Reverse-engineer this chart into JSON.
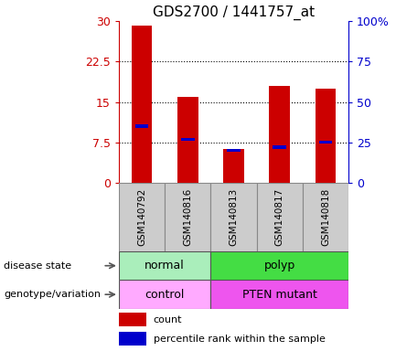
{
  "title": "GDS2700 / 1441757_at",
  "samples": [
    "GSM140792",
    "GSM140816",
    "GSM140813",
    "GSM140817",
    "GSM140818"
  ],
  "counts": [
    29.2,
    16.0,
    6.3,
    18.0,
    17.5
  ],
  "percentiles": [
    35,
    27,
    20,
    22,
    25
  ],
  "ylim_left": [
    0,
    30
  ],
  "ylim_right": [
    0,
    100
  ],
  "yticks_left": [
    0,
    7.5,
    15,
    22.5,
    30
  ],
  "yticks_right": [
    0,
    25,
    50,
    75,
    100
  ],
  "ytick_labels_left": [
    "0",
    "7.5",
    "15",
    "22.5",
    "30"
  ],
  "ytick_labels_right": [
    "0",
    "25",
    "50",
    "75",
    "100%"
  ],
  "bar_color": "#cc0000",
  "percentile_color": "#0000cc",
  "disease_state_groups": [
    {
      "label": "normal",
      "start": 0,
      "end": 2,
      "color": "#aaeebb"
    },
    {
      "label": "polyp",
      "start": 2,
      "end": 5,
      "color": "#44dd44"
    }
  ],
  "genotype_groups": [
    {
      "label": "control",
      "start": 0,
      "end": 2,
      "color": "#ffaaff"
    },
    {
      "label": "PTEN mutant",
      "start": 2,
      "end": 5,
      "color": "#ee55ee"
    }
  ],
  "row_labels": [
    "disease state",
    "genotype/variation"
  ],
  "legend_count_label": "count",
  "legend_percentile_label": "percentile rank within the sample",
  "bar_width": 0.45,
  "bg_color": "#ffffff",
  "left_axis_color": "#cc0000",
  "right_axis_color": "#0000cc",
  "sample_box_color": "#cccccc",
  "sample_box_edge": "#888888",
  "row_border_color": "#555555"
}
